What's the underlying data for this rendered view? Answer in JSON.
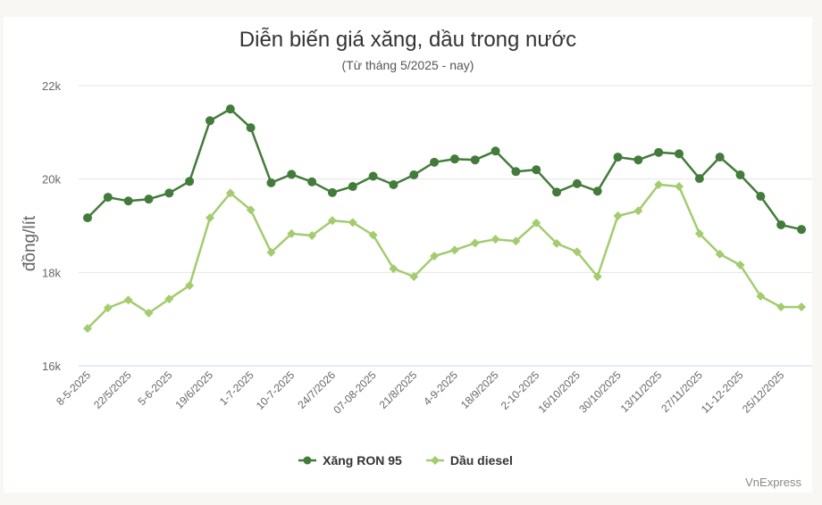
{
  "chart_data": {
    "type": "line",
    "title": "Diễn biến giá xăng, dầu trong nước",
    "subtitle": "(Từ tháng 5/2025 - nay)",
    "xlabel": "",
    "ylabel": "đồng/lít",
    "ylim": [
      16000,
      22000
    ],
    "yticks": [
      16000,
      18000,
      20000,
      22000
    ],
    "ytick_labels": [
      "16k",
      "18k",
      "20k",
      "22k"
    ],
    "grid": true,
    "legend_position": "bottom",
    "x": [
      "8-5-2025",
      "",
      "22/5/2025",
      "",
      "5-6-2025",
      "",
      "19/6/2025",
      "",
      "1-7-2025",
      "",
      "10-7-2025",
      "",
      "24/7/2026",
      "",
      "07-08-2025",
      "",
      "21/8/2025",
      "",
      "4-9-2025",
      "",
      "18/9/2025",
      "",
      "2-10-2025",
      "",
      "16/10/2025",
      "",
      "30/10/2025",
      "",
      "13/11/2025",
      "",
      "27/11/2025",
      "",
      "11-12-2025",
      "",
      "25/12/2025",
      ""
    ],
    "xtick_labels": [
      "8-5-2025",
      "22/5/2025",
      "5-6-2025",
      "19/6/2025",
      "1-7-2025",
      "10-7-2025",
      "24/7/2026",
      "07-08-2025",
      "21/8/2025",
      "4-9-2025",
      "18/9/2025",
      "2-10-2025",
      "16/10/2025",
      "30/10/2025",
      "13/11/2025",
      "27/11/2025",
      "11-12-2025",
      "25/12/2025"
    ],
    "series": [
      {
        "name": "Xăng RON 95",
        "color": "#437c3a",
        "marker": "circle",
        "values": [
          19170,
          19610,
          19530,
          19570,
          19700,
          19950,
          21250,
          21500,
          21100,
          19920,
          20100,
          19940,
          19710,
          19840,
          20060,
          19880,
          20090,
          20360,
          20430,
          20410,
          20600,
          20160,
          20200,
          19720,
          19900,
          19740,
          20470,
          20410,
          20570,
          20540,
          20010,
          20470,
          20090,
          19630,
          19020,
          18920
        ]
      },
      {
        "name": "Dầu diesel",
        "color": "#a3cc6e",
        "marker": "diamond",
        "values": [
          16800,
          17240,
          17410,
          17130,
          17430,
          17720,
          19170,
          19700,
          19340,
          18430,
          18830,
          18790,
          19110,
          19070,
          18800,
          18080,
          17910,
          18350,
          18480,
          18630,
          18710,
          18670,
          19060,
          18620,
          18440,
          17910,
          19210,
          19320,
          19880,
          19840,
          18830,
          18390,
          18160,
          17490,
          17260,
          17260
        ]
      }
    ]
  },
  "header": {
    "title": "Diễn biến giá xăng, dầu trong nước",
    "subtitle": "(Từ tháng 5/2025 - nay)"
  },
  "axis": {
    "ylabel": "đồng/lít"
  },
  "legend": [
    {
      "label": "Xăng RON 95",
      "color": "#437c3a",
      "marker": "circle"
    },
    {
      "label": "Dầu diesel",
      "color": "#a3cc6e",
      "marker": "diamond"
    }
  ],
  "credit": "VnExpress"
}
